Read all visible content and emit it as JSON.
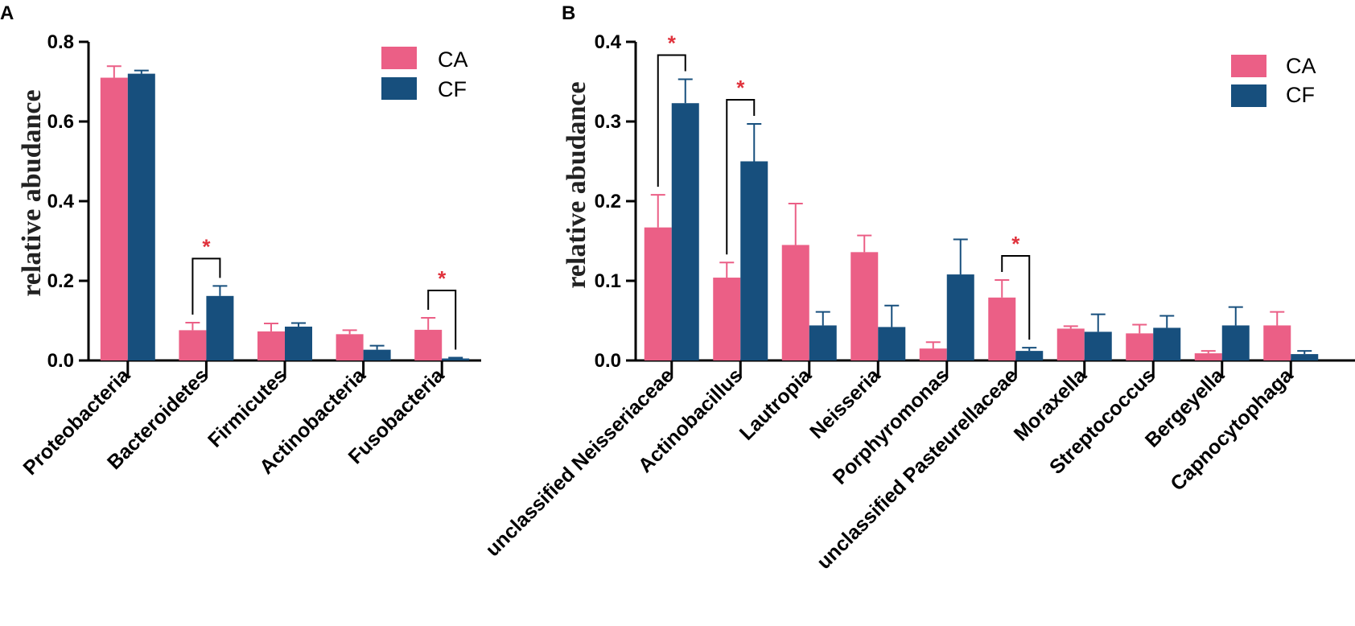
{
  "colors": {
    "CA": "#eb5f86",
    "CF": "#174f7d",
    "sig": "#e0323c"
  },
  "chart_data": [
    {
      "panel": "A",
      "type": "bar",
      "ylabel": "relative abudance",
      "ylim": [
        0,
        0.8
      ],
      "yticks": [
        "0.0",
        "0.2",
        "0.4",
        "0.6",
        "0.8"
      ],
      "categories": [
        "Proteobacteria",
        "Bacteroidetes",
        "Firmicutes",
        "Actinobacteria",
        "Fusobacteria"
      ],
      "series": [
        {
          "name": "CA",
          "values": [
            0.71,
            0.076,
            0.073,
            0.066,
            0.077
          ],
          "errors": [
            0.029,
            0.019,
            0.02,
            0.01,
            0.03
          ]
        },
        {
          "name": "CF",
          "values": [
            0.72,
            0.162,
            0.085,
            0.027,
            0.005
          ],
          "errors": [
            0.008,
            0.025,
            0.009,
            0.01,
            0.002
          ]
        }
      ],
      "significance": [
        {
          "category": "Bacteroidetes",
          "label": "*"
        },
        {
          "category": "Fusobacteria",
          "label": "*"
        }
      ],
      "legend": [
        "CA",
        "CF"
      ]
    },
    {
      "panel": "B",
      "type": "bar",
      "ylabel": "relative abudance",
      "ylim": [
        0,
        0.4
      ],
      "yticks": [
        "0.0",
        "0.1",
        "0.2",
        "0.3",
        "0.4"
      ],
      "categories": [
        "unclassified Neisseriaceae",
        "Actinobacillus",
        "Lautropia",
        "Neisseria",
        "Porphyromonas",
        "unclassified Pasteurellaceae",
        "Moraxella",
        "Streptococcus",
        "Bergeyella",
        "Capnocytophaga"
      ],
      "series": [
        {
          "name": "CA",
          "values": [
            0.167,
            0.104,
            0.145,
            0.136,
            0.015,
            0.079,
            0.04,
            0.034,
            0.009,
            0.044
          ],
          "errors": [
            0.041,
            0.019,
            0.052,
            0.021,
            0.008,
            0.022,
            0.003,
            0.011,
            0.003,
            0.017
          ]
        },
        {
          "name": "CF",
          "values": [
            0.323,
            0.25,
            0.044,
            0.042,
            0.108,
            0.012,
            0.036,
            0.041,
            0.044,
            0.008
          ],
          "errors": [
            0.03,
            0.047,
            0.017,
            0.027,
            0.044,
            0.004,
            0.022,
            0.015,
            0.023,
            0.004
          ]
        }
      ],
      "significance": [
        {
          "category": "unclassified Neisseriaceae",
          "label": "*"
        },
        {
          "category": "Actinobacillus",
          "label": "*"
        },
        {
          "category": "unclassified Pasteurellaceae",
          "label": "*"
        }
      ],
      "legend": [
        "CA",
        "CF"
      ]
    }
  ]
}
